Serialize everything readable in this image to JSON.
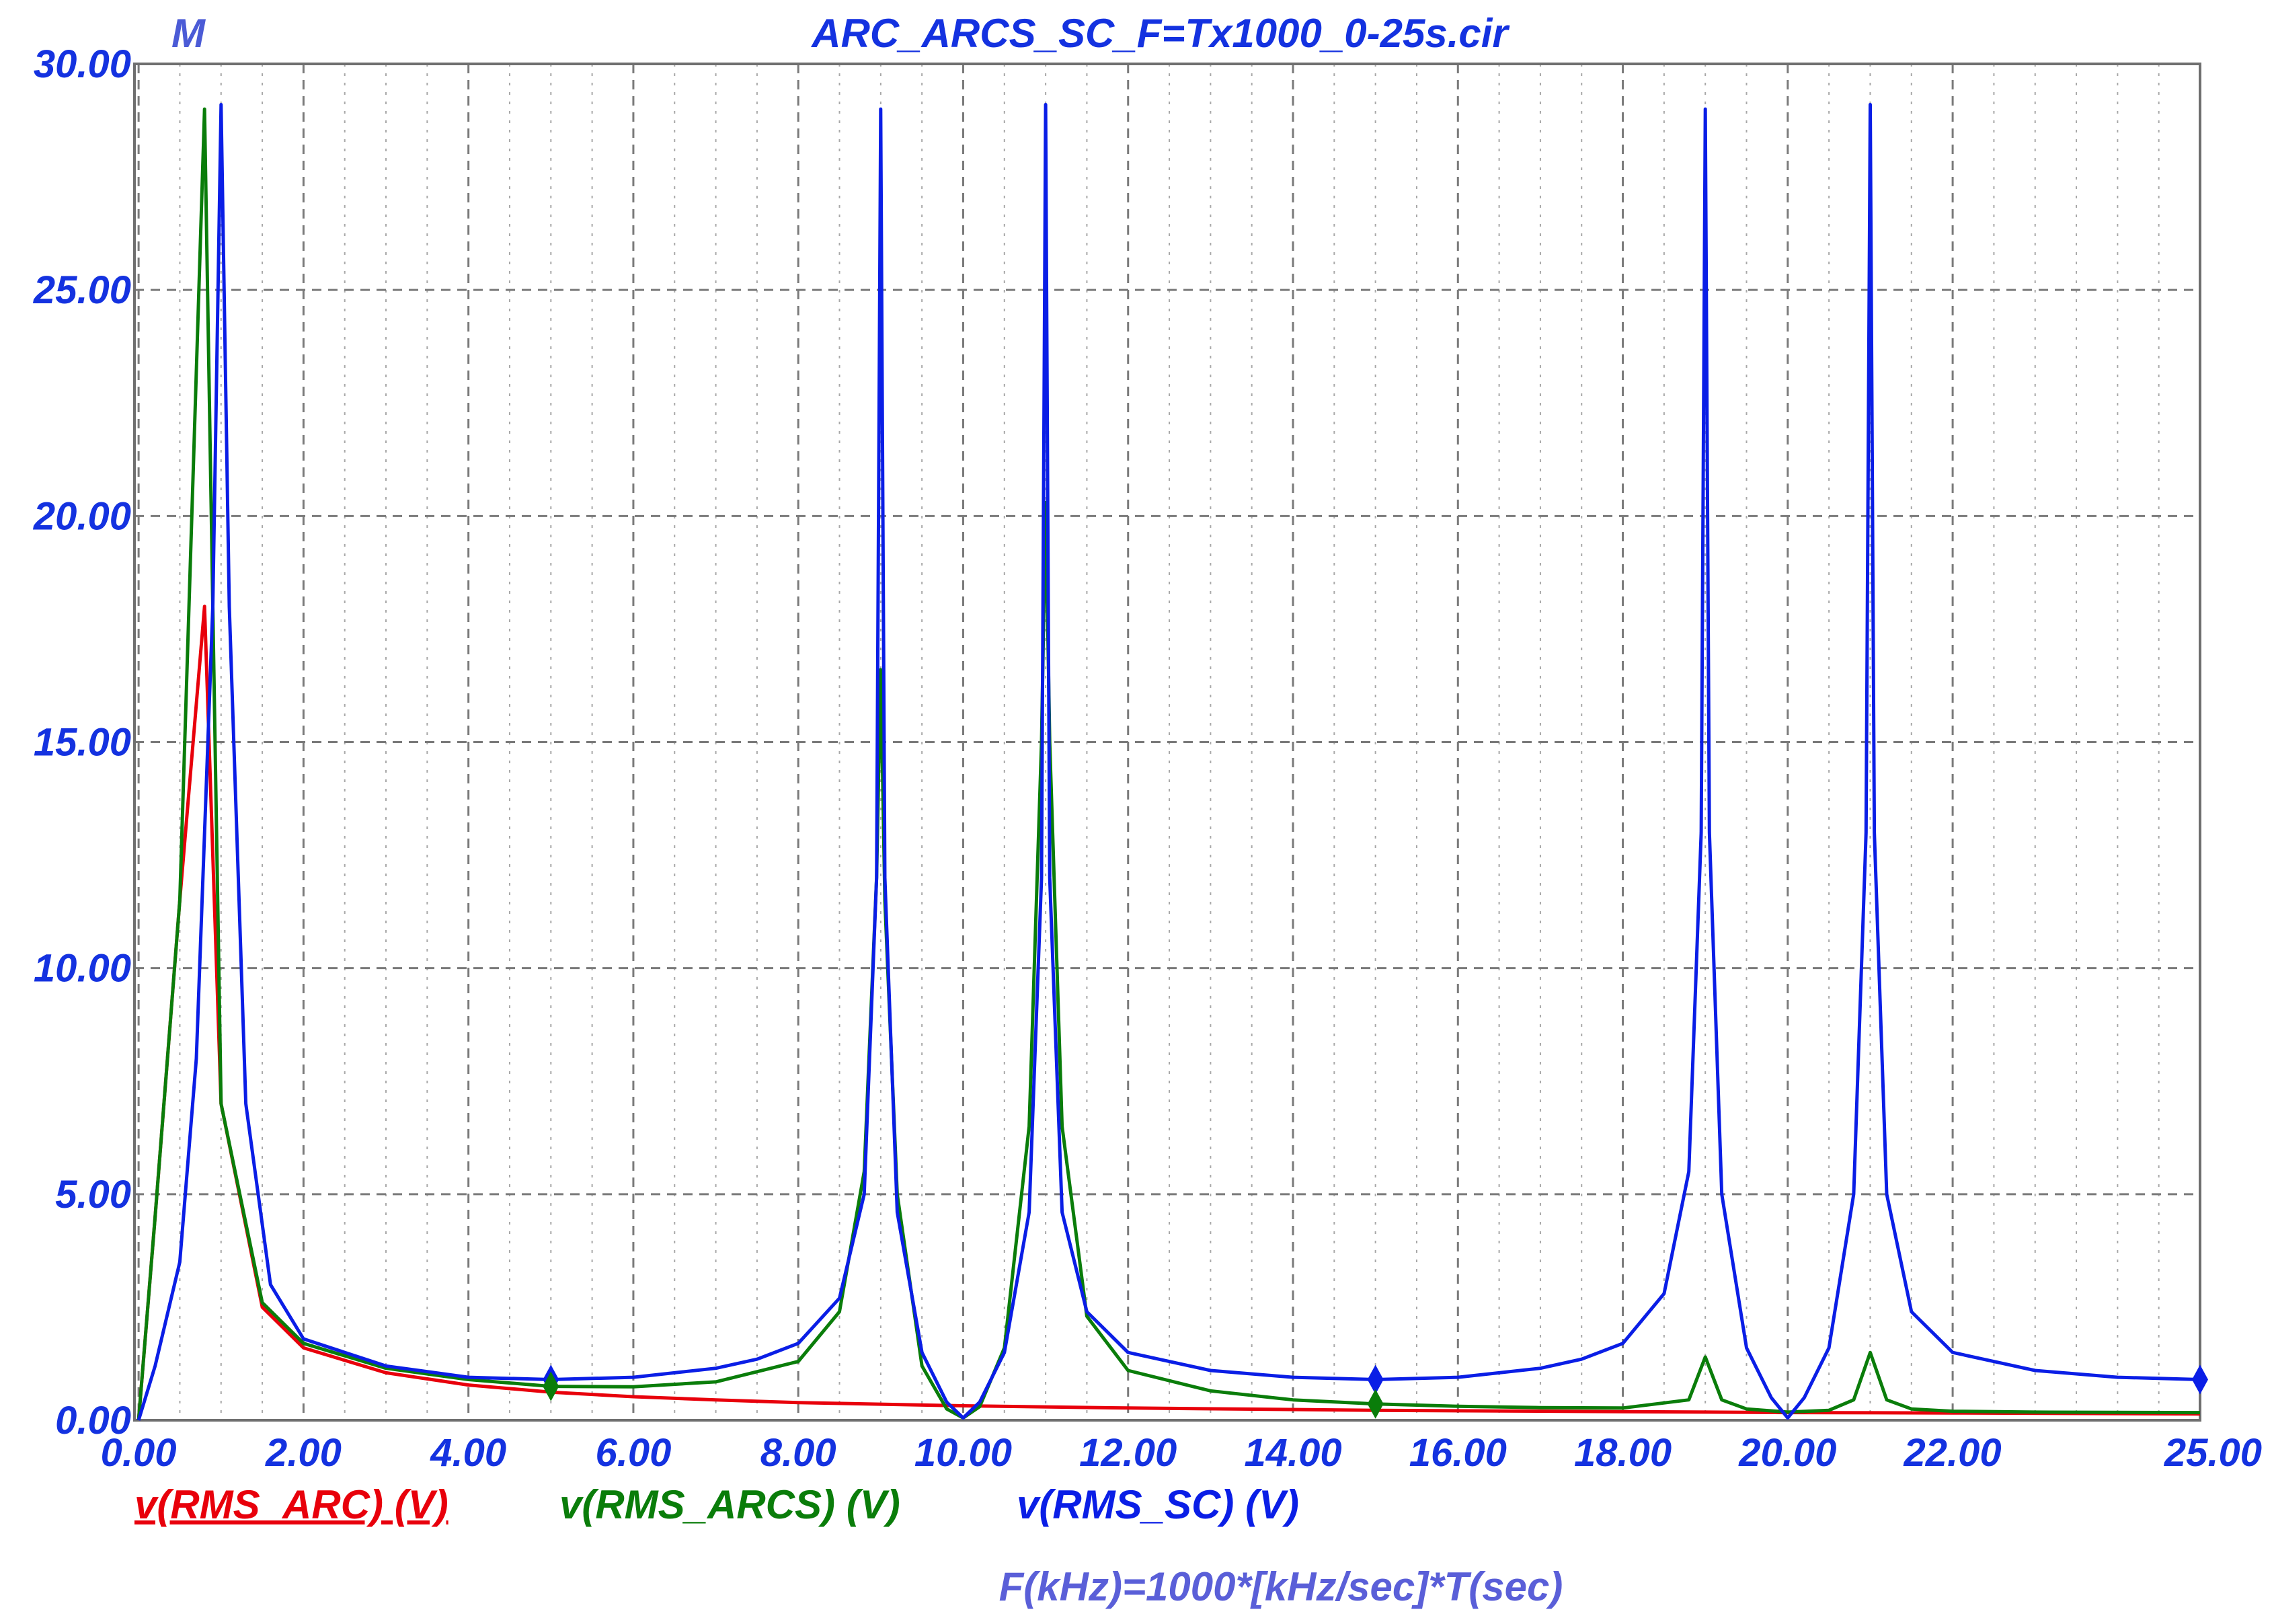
{
  "chart_data": {
    "type": "line",
    "title": "ARC_ARCS_SC_F=Tx1000_0-25s.cir",
    "corner_label": "M",
    "xlabel": "F(kHz)=1000*[kHz/sec]*T(sec)",
    "ylabel": "",
    "xlim": [
      -0.05,
      25.0
    ],
    "ylim": [
      0.0,
      30.0
    ],
    "grid": true,
    "x_ticks": [
      0,
      2,
      4,
      6,
      8,
      10,
      12,
      14,
      16,
      18,
      20,
      22,
      25
    ],
    "x_tick_labels": [
      "0.00",
      "2.00",
      "4.00",
      "6.00",
      "8.00",
      "10.00",
      "12.00",
      "14.00",
      "16.00",
      "18.00",
      "20.00",
      "22.00",
      "25.00"
    ],
    "y_ticks": [
      0,
      5,
      10,
      15,
      20,
      25,
      30
    ],
    "y_tick_labels": [
      "0.00",
      "5.00",
      "10.00",
      "15.00",
      "20.00",
      "25.00",
      "30.00"
    ],
    "legend_position": "bottom",
    "series": [
      {
        "name": "v(RMS_ARC) (V)",
        "color": "#e8000b",
        "x": [
          0.0,
          0.2,
          0.5,
          0.8,
          1.0,
          1.5,
          2.0,
          3.0,
          4.0,
          5.0,
          6.0,
          7.0,
          8.0,
          10.0,
          12.0,
          15.0,
          18.0,
          20.0,
          22.0,
          25.0
        ],
        "y": [
          0.0,
          4.5,
          11.5,
          18.0,
          7.0,
          2.5,
          1.6,
          1.05,
          0.78,
          0.62,
          0.52,
          0.45,
          0.39,
          0.32,
          0.27,
          0.22,
          0.19,
          0.17,
          0.16,
          0.14
        ]
      },
      {
        "name": "v(RMS_ARCS) (V)",
        "color": "#0a7d0a",
        "x": [
          0.0,
          0.2,
          0.5,
          0.8,
          1.0,
          1.5,
          2.0,
          3.0,
          4.0,
          5.0,
          6.0,
          7.0,
          8.0,
          8.5,
          8.8,
          8.95,
          9.0,
          9.05,
          9.2,
          9.5,
          9.8,
          10.0,
          10.2,
          10.5,
          10.8,
          10.95,
          11.0,
          11.05,
          11.2,
          11.5,
          12.0,
          13.0,
          14.0,
          15.0,
          16.0,
          17.0,
          18.0,
          18.8,
          19.0,
          19.2,
          19.5,
          20.0,
          20.5,
          20.8,
          21.0,
          21.2,
          21.5,
          22.0,
          23.0,
          25.0
        ],
        "y": [
          0.0,
          4.5,
          11.5,
          29.0,
          7.0,
          2.6,
          1.7,
          1.15,
          0.9,
          0.75,
          0.74,
          0.85,
          1.3,
          2.4,
          5.5,
          12.0,
          16.6,
          11.5,
          5.0,
          1.2,
          0.25,
          0.05,
          0.3,
          1.6,
          6.5,
          15.0,
          20.3,
          15.0,
          6.5,
          2.3,
          1.1,
          0.65,
          0.45,
          0.36,
          0.31,
          0.28,
          0.27,
          0.45,
          1.4,
          0.45,
          0.25,
          0.18,
          0.22,
          0.45,
          1.5,
          0.45,
          0.25,
          0.2,
          0.18,
          0.17
        ]
      },
      {
        "name": "v(RMS_SC) (V)",
        "color": "#0a1ee6",
        "x": [
          0.0,
          0.2,
          0.5,
          0.7,
          0.9,
          1.0,
          1.1,
          1.3,
          1.6,
          2.0,
          3.0,
          4.0,
          5.0,
          6.0,
          7.0,
          7.5,
          8.0,
          8.5,
          8.8,
          8.95,
          9.0,
          9.05,
          9.2,
          9.5,
          9.8,
          10.0,
          10.2,
          10.5,
          10.8,
          10.95,
          11.0,
          11.05,
          11.2,
          11.5,
          12.0,
          13.0,
          14.0,
          15.0,
          16.0,
          17.0,
          17.5,
          18.0,
          18.5,
          18.8,
          18.95,
          19.0,
          19.05,
          19.2,
          19.5,
          19.8,
          20.0,
          20.2,
          20.5,
          20.8,
          20.95,
          21.0,
          21.05,
          21.2,
          21.5,
          22.0,
          23.0,
          24.0,
          25.0
        ],
        "y": [
          0.0,
          1.2,
          3.5,
          8.0,
          18.0,
          29.1,
          18.0,
          7.0,
          3.0,
          1.8,
          1.2,
          0.95,
          0.9,
          0.95,
          1.15,
          1.35,
          1.7,
          2.7,
          5.0,
          12.0,
          29.0,
          12.0,
          4.6,
          1.5,
          0.4,
          0.05,
          0.4,
          1.5,
          4.6,
          12.0,
          29.1,
          12.0,
          4.6,
          2.4,
          1.5,
          1.1,
          0.95,
          0.9,
          0.95,
          1.15,
          1.35,
          1.7,
          2.8,
          5.5,
          13.0,
          29.0,
          13.0,
          5.0,
          1.6,
          0.5,
          0.05,
          0.5,
          1.6,
          5.0,
          13.0,
          29.1,
          13.0,
          5.0,
          2.4,
          1.5,
          1.1,
          0.95,
          0.9
        ]
      }
    ]
  }
}
